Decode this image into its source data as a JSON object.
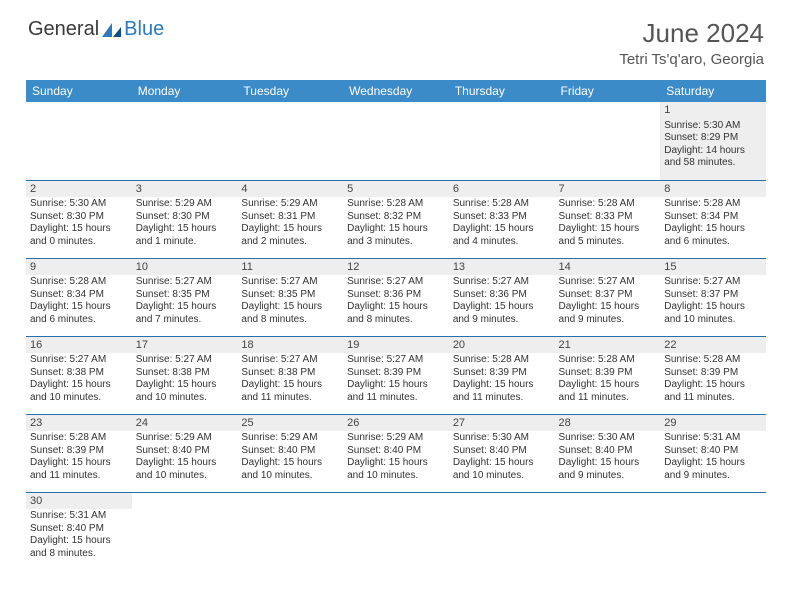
{
  "brand": {
    "part1": "General",
    "part2": "Blue"
  },
  "title": "June 2024",
  "location": "Tetri Ts'q'aro, Georgia",
  "colors": {
    "header_bg": "#3b8bc9",
    "header_text": "#ffffff",
    "row_border": "#2b6fa8",
    "shade_bg": "#eeeeee",
    "text": "#333333",
    "brand_gray": "#3a3a3a",
    "brand_blue": "#2b7abf"
  },
  "day_headers": [
    "Sunday",
    "Monday",
    "Tuesday",
    "Wednesday",
    "Thursday",
    "Friday",
    "Saturday"
  ],
  "weeks": [
    [
      {
        "blank": true
      },
      {
        "blank": true
      },
      {
        "blank": true
      },
      {
        "blank": true
      },
      {
        "blank": true
      },
      {
        "blank": true
      },
      {
        "n": "1",
        "sr": "5:30 AM",
        "ss": "8:29 PM",
        "dl": "14 hours and 58 minutes."
      }
    ],
    [
      {
        "n": "2",
        "sr": "5:30 AM",
        "ss": "8:30 PM",
        "dl": "15 hours and 0 minutes."
      },
      {
        "n": "3",
        "sr": "5:29 AM",
        "ss": "8:30 PM",
        "dl": "15 hours and 1 minute."
      },
      {
        "n": "4",
        "sr": "5:29 AM",
        "ss": "8:31 PM",
        "dl": "15 hours and 2 minutes."
      },
      {
        "n": "5",
        "sr": "5:28 AM",
        "ss": "8:32 PM",
        "dl": "15 hours and 3 minutes."
      },
      {
        "n": "6",
        "sr": "5:28 AM",
        "ss": "8:33 PM",
        "dl": "15 hours and 4 minutes."
      },
      {
        "n": "7",
        "sr": "5:28 AM",
        "ss": "8:33 PM",
        "dl": "15 hours and 5 minutes."
      },
      {
        "n": "8",
        "sr": "5:28 AM",
        "ss": "8:34 PM",
        "dl": "15 hours and 6 minutes."
      }
    ],
    [
      {
        "n": "9",
        "sr": "5:28 AM",
        "ss": "8:34 PM",
        "dl": "15 hours and 6 minutes."
      },
      {
        "n": "10",
        "sr": "5:27 AM",
        "ss": "8:35 PM",
        "dl": "15 hours and 7 minutes."
      },
      {
        "n": "11",
        "sr": "5:27 AM",
        "ss": "8:35 PM",
        "dl": "15 hours and 8 minutes."
      },
      {
        "n": "12",
        "sr": "5:27 AM",
        "ss": "8:36 PM",
        "dl": "15 hours and 8 minutes."
      },
      {
        "n": "13",
        "sr": "5:27 AM",
        "ss": "8:36 PM",
        "dl": "15 hours and 9 minutes."
      },
      {
        "n": "14",
        "sr": "5:27 AM",
        "ss": "8:37 PM",
        "dl": "15 hours and 9 minutes."
      },
      {
        "n": "15",
        "sr": "5:27 AM",
        "ss": "8:37 PM",
        "dl": "15 hours and 10 minutes."
      }
    ],
    [
      {
        "n": "16",
        "sr": "5:27 AM",
        "ss": "8:38 PM",
        "dl": "15 hours and 10 minutes."
      },
      {
        "n": "17",
        "sr": "5:27 AM",
        "ss": "8:38 PM",
        "dl": "15 hours and 10 minutes."
      },
      {
        "n": "18",
        "sr": "5:27 AM",
        "ss": "8:38 PM",
        "dl": "15 hours and 11 minutes."
      },
      {
        "n": "19",
        "sr": "5:27 AM",
        "ss": "8:39 PM",
        "dl": "15 hours and 11 minutes."
      },
      {
        "n": "20",
        "sr": "5:28 AM",
        "ss": "8:39 PM",
        "dl": "15 hours and 11 minutes."
      },
      {
        "n": "21",
        "sr": "5:28 AM",
        "ss": "8:39 PM",
        "dl": "15 hours and 11 minutes."
      },
      {
        "n": "22",
        "sr": "5:28 AM",
        "ss": "8:39 PM",
        "dl": "15 hours and 11 minutes."
      }
    ],
    [
      {
        "n": "23",
        "sr": "5:28 AM",
        "ss": "8:39 PM",
        "dl": "15 hours and 11 minutes."
      },
      {
        "n": "24",
        "sr": "5:29 AM",
        "ss": "8:40 PM",
        "dl": "15 hours and 10 minutes."
      },
      {
        "n": "25",
        "sr": "5:29 AM",
        "ss": "8:40 PM",
        "dl": "15 hours and 10 minutes."
      },
      {
        "n": "26",
        "sr": "5:29 AM",
        "ss": "8:40 PM",
        "dl": "15 hours and 10 minutes."
      },
      {
        "n": "27",
        "sr": "5:30 AM",
        "ss": "8:40 PM",
        "dl": "15 hours and 10 minutes."
      },
      {
        "n": "28",
        "sr": "5:30 AM",
        "ss": "8:40 PM",
        "dl": "15 hours and 9 minutes."
      },
      {
        "n": "29",
        "sr": "5:31 AM",
        "ss": "8:40 PM",
        "dl": "15 hours and 9 minutes."
      }
    ],
    [
      {
        "n": "30",
        "sr": "5:31 AM",
        "ss": "8:40 PM",
        "dl": "15 hours and 8 minutes."
      },
      {
        "blank": true
      },
      {
        "blank": true
      },
      {
        "blank": true
      },
      {
        "blank": true
      },
      {
        "blank": true
      },
      {
        "blank": true
      }
    ]
  ],
  "labels": {
    "sunrise": "Sunrise:",
    "sunset": "Sunset:",
    "daylight": "Daylight:"
  }
}
